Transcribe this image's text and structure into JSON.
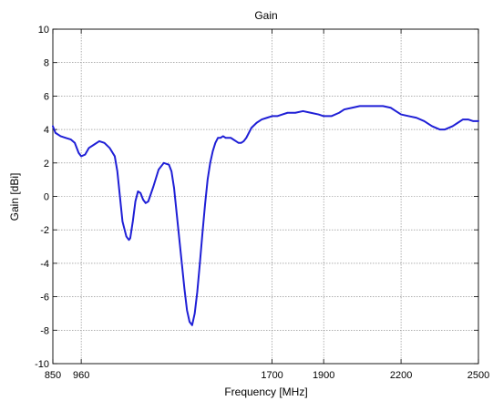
{
  "chart_data": {
    "type": "line",
    "title": "Gain",
    "xlabel": "Frequency [MHz]",
    "ylabel": "Gain [dBi]",
    "xlim": [
      850,
      2500
    ],
    "ylim": [
      -10,
      10
    ],
    "xticks": [
      850,
      960,
      1700,
      1900,
      2200,
      2500
    ],
    "yticks": [
      -10,
      -8,
      -6,
      -4,
      -2,
      0,
      2,
      4,
      6,
      8,
      10
    ],
    "grid": true,
    "legend": "none",
    "series": [
      {
        "color": "#1f1fd6",
        "x": [
          850,
          860,
          880,
          900,
          920,
          935,
          950,
          960,
          975,
          990,
          1010,
          1030,
          1050,
          1070,
          1090,
          1100,
          1110,
          1120,
          1135,
          1145,
          1150,
          1160,
          1170,
          1180,
          1190,
          1200,
          1210,
          1220,
          1240,
          1260,
          1280,
          1300,
          1310,
          1320,
          1330,
          1340,
          1350,
          1360,
          1370,
          1380,
          1390,
          1400,
          1410,
          1420,
          1430,
          1440,
          1450,
          1460,
          1470,
          1480,
          1490,
          1500,
          1510,
          1520,
          1530,
          1540,
          1550,
          1560,
          1570,
          1580,
          1590,
          1600,
          1610,
          1620,
          1640,
          1660,
          1680,
          1700,
          1720,
          1740,
          1760,
          1790,
          1820,
          1850,
          1880,
          1900,
          1930,
          1960,
          1980,
          2010,
          2040,
          2070,
          2100,
          2130,
          2160,
          2180,
          2200,
          2230,
          2260,
          2290,
          2320,
          2350,
          2370,
          2400,
          2420,
          2440,
          2460,
          2480,
          2500
        ],
        "y": [
          4.2,
          3.8,
          3.6,
          3.5,
          3.4,
          3.2,
          2.6,
          2.4,
          2.5,
          2.9,
          3.1,
          3.3,
          3.2,
          2.9,
          2.4,
          1.5,
          0.0,
          -1.5,
          -2.4,
          -2.6,
          -2.5,
          -1.5,
          -0.3,
          0.3,
          0.2,
          -0.2,
          -0.4,
          -0.3,
          0.6,
          1.6,
          2.0,
          1.9,
          1.5,
          0.5,
          -1.0,
          -2.5,
          -4.0,
          -5.5,
          -6.8,
          -7.5,
          -7.7,
          -7.0,
          -5.7,
          -4.0,
          -2.2,
          -0.5,
          1.0,
          2.0,
          2.7,
          3.2,
          3.5,
          3.5,
          3.6,
          3.5,
          3.5,
          3.5,
          3.4,
          3.3,
          3.2,
          3.2,
          3.3,
          3.5,
          3.8,
          4.1,
          4.4,
          4.6,
          4.7,
          4.8,
          4.8,
          4.9,
          5.0,
          5.0,
          5.1,
          5.0,
          4.9,
          4.8,
          4.8,
          5.0,
          5.2,
          5.3,
          5.4,
          5.4,
          5.4,
          5.4,
          5.3,
          5.1,
          4.9,
          4.8,
          4.7,
          4.5,
          4.2,
          4.0,
          4.0,
          4.2,
          4.4,
          4.6,
          4.6,
          4.5,
          4.5
        ]
      }
    ]
  }
}
